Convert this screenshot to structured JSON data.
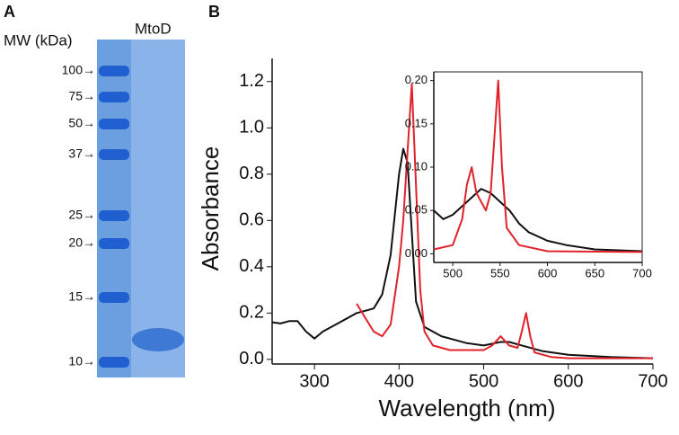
{
  "gel": {
    "label": "A",
    "mw_label": "MW (kDa)",
    "lane_label": "MtoD",
    "markers": [
      "100→",
      "75→",
      "50→",
      "37→",
      "25→",
      "20→",
      "15→",
      "10→"
    ]
  },
  "chart_data": [
    {
      "type": "line",
      "panel_label": "B",
      "x_label": "Wavelength (nm)",
      "y_label": "Absorbance",
      "xlim": [
        250,
        700
      ],
      "xticks": [
        300,
        400,
        500,
        600,
        700
      ],
      "ylim": [
        -0.02,
        1.3
      ],
      "yticks": [
        {
          "value": 0,
          "label": "0.0"
        },
        0.2,
        0.4,
        0.6,
        0.8,
        {
          "value": 1,
          "label": "1.0"
        },
        1.2
      ],
      "series": [
        {
          "color": "#111111",
          "x": [
            250,
            260,
            270,
            280,
            290,
            300,
            310,
            330,
            350,
            360,
            370,
            380,
            390,
            400,
            405,
            410,
            415,
            420,
            430,
            450,
            480,
            500,
            520,
            530,
            550,
            570,
            600,
            650,
            700
          ],
          "values": [
            0.16,
            0.155,
            0.165,
            0.165,
            0.12,
            0.09,
            0.12,
            0.16,
            0.2,
            0.21,
            0.22,
            0.28,
            0.45,
            0.8,
            0.91,
            0.85,
            0.55,
            0.25,
            0.14,
            0.1,
            0.07,
            0.06,
            0.075,
            0.075,
            0.055,
            0.035,
            0.02,
            0.01,
            0.005
          ]
        },
        {
          "color": "#e0232a",
          "x": [
            350,
            360,
            370,
            380,
            390,
            400,
            405,
            410,
            415,
            420,
            425,
            430,
            440,
            460,
            500,
            510,
            520,
            530,
            540,
            545,
            550,
            555,
            560,
            580,
            600,
            700
          ],
          "values": [
            0.24,
            0.18,
            0.12,
            0.1,
            0.15,
            0.4,
            0.6,
            0.9,
            1.19,
            0.75,
            0.3,
            0.12,
            0.06,
            0.04,
            0.04,
            0.06,
            0.1,
            0.06,
            0.05,
            0.12,
            0.2,
            0.1,
            0.03,
            0.01,
            0.005,
            0.005
          ]
        }
      ]
    },
    {
      "type": "line",
      "xlim": [
        480,
        700
      ],
      "xticks": [
        500,
        550,
        600,
        650,
        700
      ],
      "ylim": [
        -0.01,
        0.21
      ],
      "yticks": [
        {
          "value": 0,
          "label": "0.00"
        },
        0.05,
        {
          "value": 0.1,
          "label": "0.10"
        },
        0.15,
        {
          "value": 0.2,
          "label": "0.20"
        }
      ],
      "series": [
        {
          "color": "#111111",
          "x": [
            480,
            490,
            500,
            510,
            520,
            530,
            540,
            550,
            560,
            570,
            580,
            600,
            620,
            650,
            700
          ],
          "values": [
            0.05,
            0.04,
            0.045,
            0.055,
            0.065,
            0.075,
            0.07,
            0.06,
            0.05,
            0.035,
            0.025,
            0.015,
            0.01,
            0.005,
            0.003
          ]
        },
        {
          "color": "#e0232a",
          "x": [
            480,
            500,
            510,
            515,
            520,
            525,
            530,
            535,
            540,
            545,
            548,
            552,
            557,
            570,
            600,
            700
          ],
          "values": [
            0.005,
            0.01,
            0.04,
            0.08,
            0.1,
            0.07,
            0.06,
            0.05,
            0.07,
            0.15,
            0.2,
            0.1,
            0.03,
            0.01,
            0.003,
            0.002
          ]
        }
      ]
    }
  ]
}
